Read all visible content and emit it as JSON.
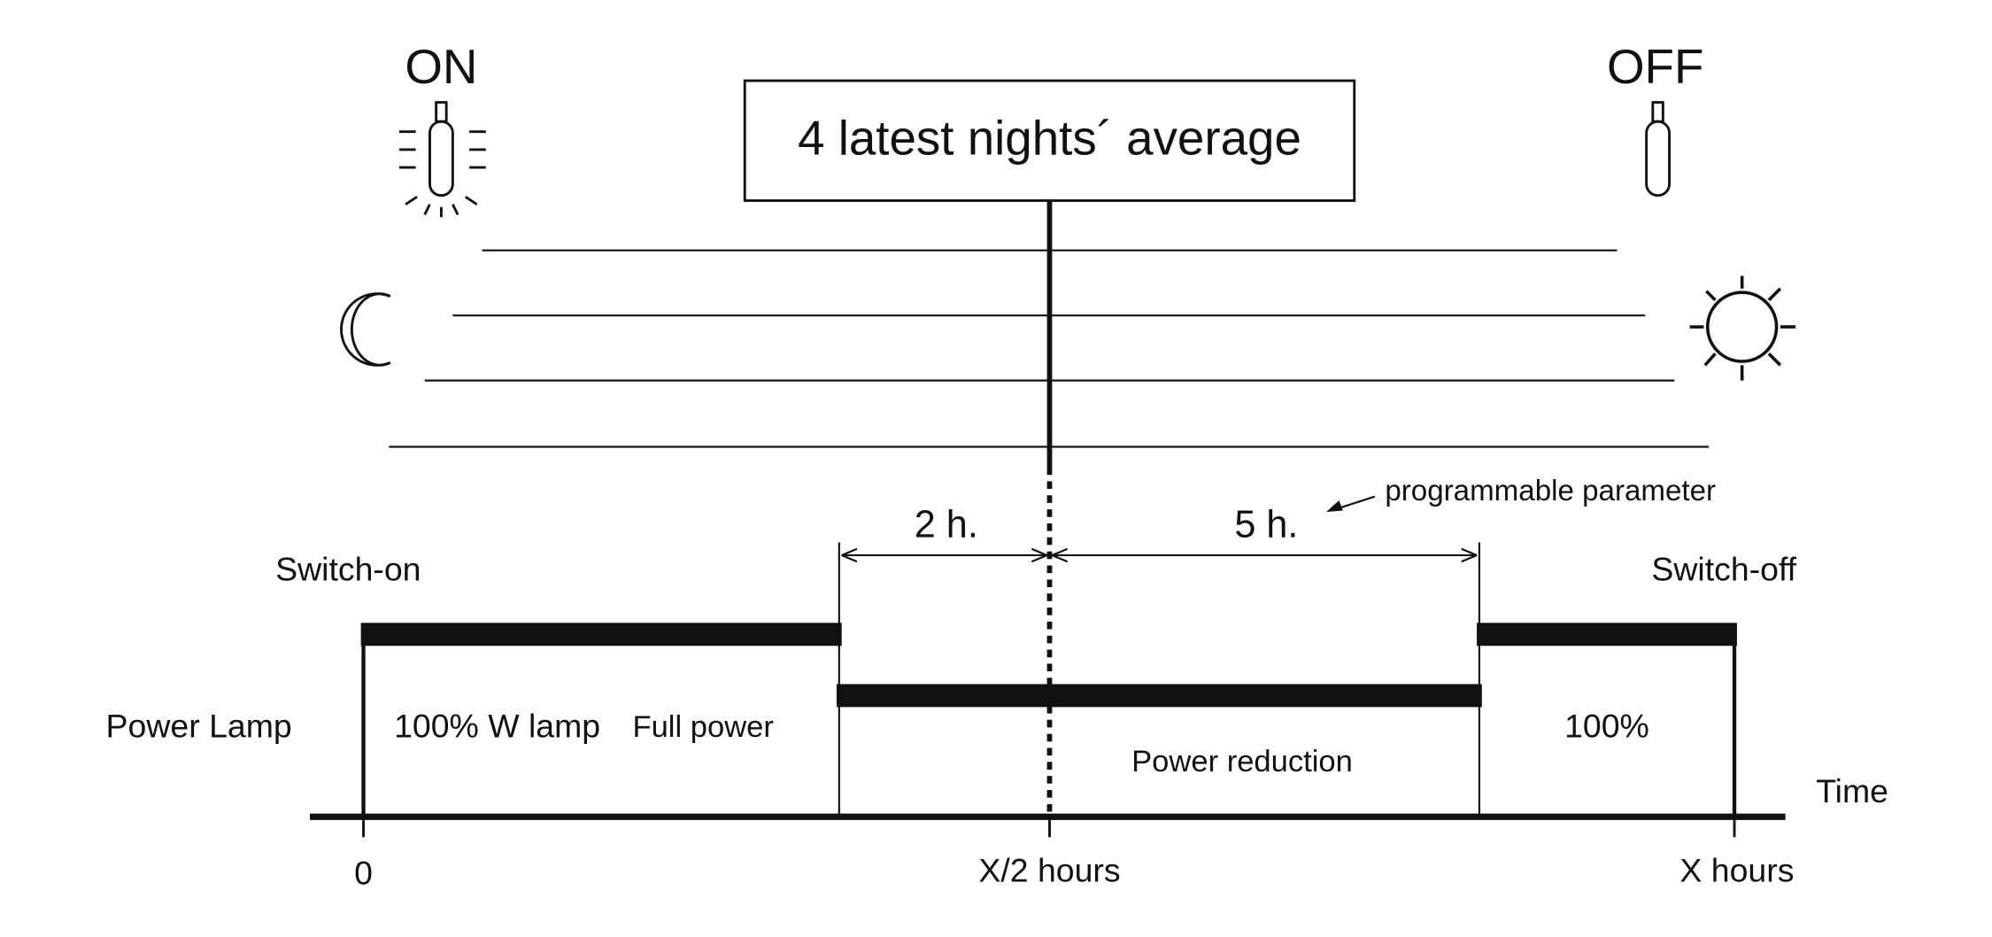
{
  "header": {
    "box": "4 latest nights´ average",
    "on": "ON",
    "off": "OFF"
  },
  "timing": {
    "before": "2 h.",
    "after": "5 h.",
    "note": "programmable parameter"
  },
  "labels": {
    "switch_on": "Switch-on",
    "switch_off": "Switch-off",
    "power_lamp": "Power Lamp",
    "full_pct": "100% W lamp",
    "full_power": "Full power",
    "reduction": "Power reduction",
    "end_pct": "100%",
    "time": "Time"
  },
  "axis": {
    "start": "0",
    "middle": "X/2 hours",
    "end": "X hours"
  }
}
